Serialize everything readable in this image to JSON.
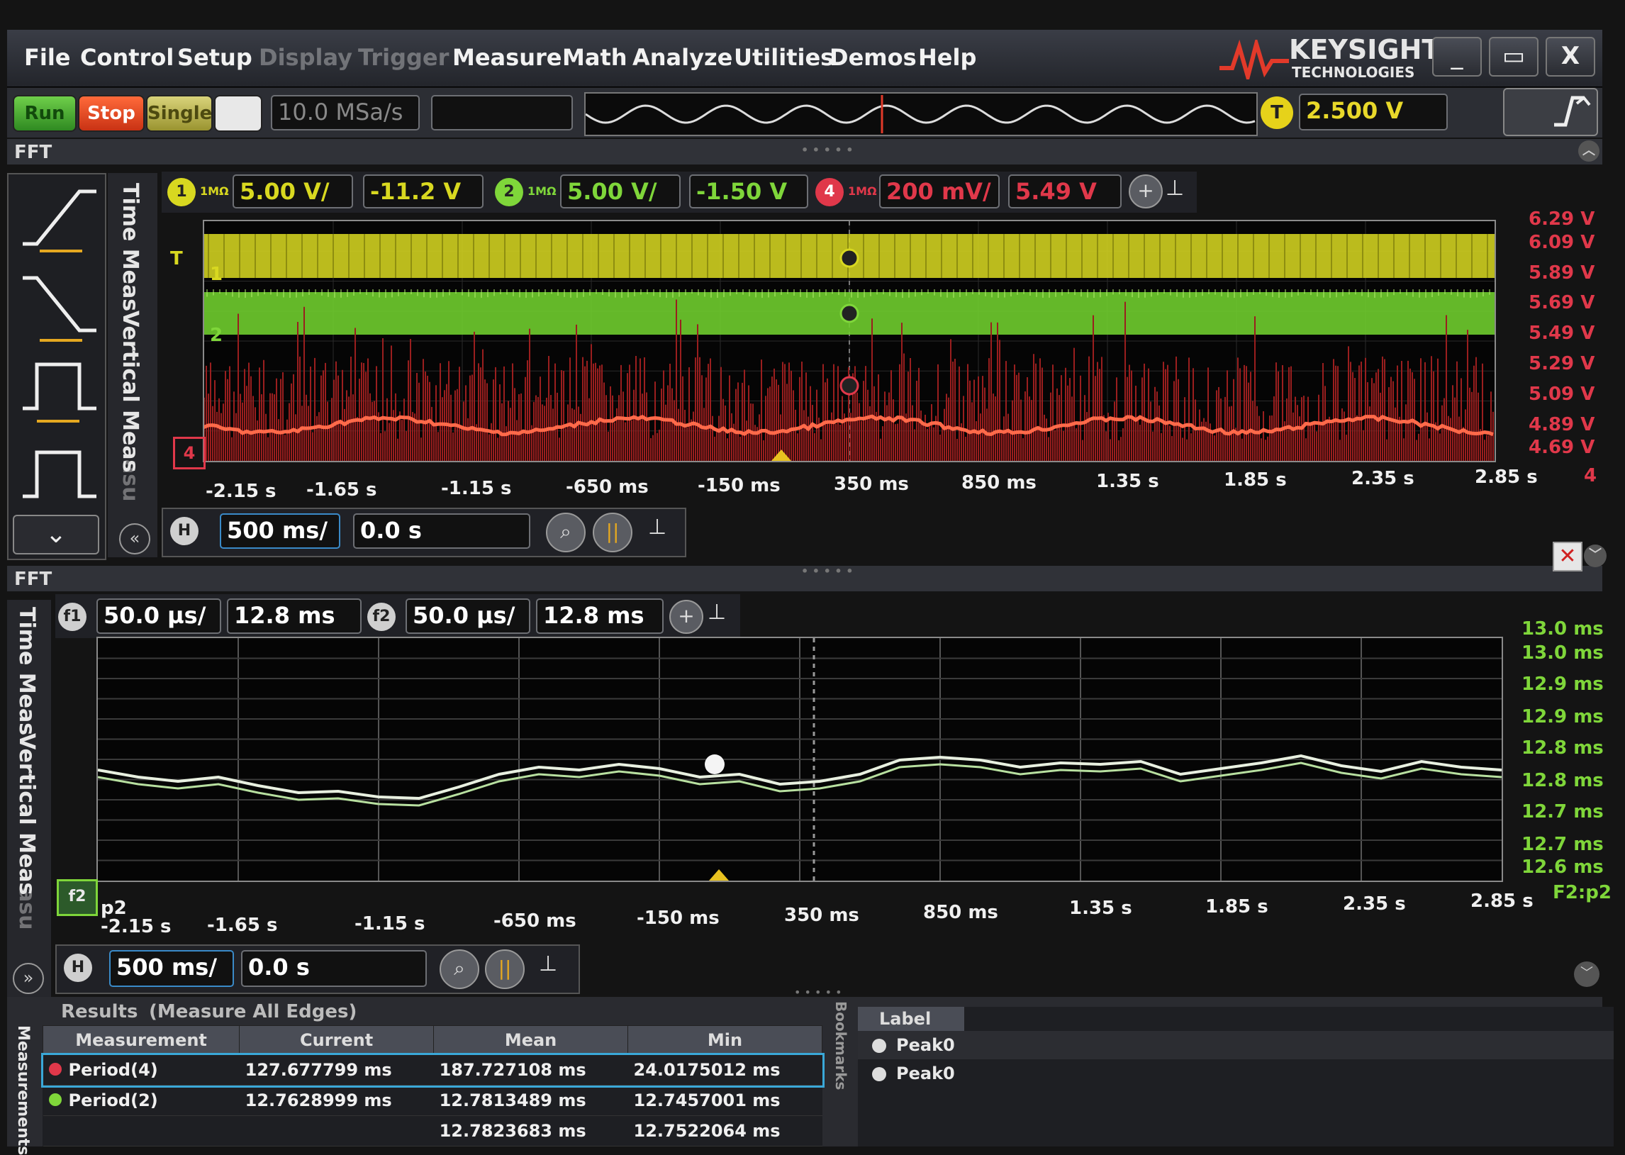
{
  "menu": [
    "File",
    "Control",
    "Setup",
    "Display",
    "Trigger",
    "Measure",
    "Math",
    "Analyze",
    "Utilities",
    "Demos",
    "Help"
  ],
  "brand": {
    "name": "KEYSIGHT",
    "sub": "TECHNOLOGIES"
  },
  "window_buttons": {
    "minimize": "_",
    "restore": "▭",
    "close": "X"
  },
  "toolbar": {
    "run": "Run",
    "stop": "Stop",
    "single": "Single",
    "sample_rate": "10.0 MSa/s",
    "trigger_chip": "T",
    "trigger_level": "2.500 V"
  },
  "fft_label_top": "FFT",
  "fft_label_bottom": "FFT",
  "channels": [
    {
      "num": "1",
      "imp": "1MΩ",
      "scale": "5.00 V/",
      "offset": "-11.2 V",
      "color": "#d8d820"
    },
    {
      "num": "2",
      "imp": "1MΩ",
      "scale": "5.00 V/",
      "offset": "-1.50 V",
      "color": "#7fd63a"
    },
    {
      "num": "4",
      "imp": "1MΩ",
      "scale": "200 mV/",
      "offset": "5.49 V",
      "color": "#e0384a"
    }
  ],
  "side_tabs_top": [
    "Time Meas",
    "Vertical Meas",
    "asu"
  ],
  "side_tabs_bottom": [
    "Time Meas",
    "Vertical Meas",
    "asu"
  ],
  "top_plot": {
    "right_labels": [
      "6.29 V",
      "6.09 V",
      "5.89 V",
      "5.69 V",
      "5.49 V",
      "5.29 V",
      "5.09 V",
      "4.89 V",
      "4.69 V",
      "4"
    ],
    "x_labels": [
      "-2.15 s",
      "-1.65 s",
      "-1.15 s",
      "-650 ms",
      "-150 ms",
      "350 ms",
      "850 ms",
      "1.35 s",
      "1.85 s",
      "2.35 s",
      "2.85 s"
    ],
    "markers": {
      "t": "T",
      "ch1": "1",
      "ch2": "2",
      "ch4": "4"
    }
  },
  "top_timebase": {
    "scale": "500 ms/",
    "delay": "0.0 s"
  },
  "function_bar": [
    {
      "chip": "f1",
      "scale": "50.0 µs/",
      "offset": "12.8 ms"
    },
    {
      "chip": "f2",
      "scale": "50.0 µs/",
      "offset": "12.8 ms"
    }
  ],
  "bottom_plot": {
    "right_labels": [
      "13.0 ms",
      "13.0 ms",
      "12.9 ms",
      "12.9 ms",
      "12.8 ms",
      "12.8 ms",
      "12.7 ms",
      "12.7 ms",
      "12.6 ms"
    ],
    "x_labels": [
      "-2.15 s",
      "-1.65 s",
      "-1.15 s",
      "-650 ms",
      "-150 ms",
      "350 ms",
      "850 ms",
      "1.35 s",
      "1.85 s",
      "2.35 s",
      "2.85 s"
    ],
    "source": "F2:p2",
    "marker": "p2"
  },
  "bottom_timebase": {
    "scale": "500 ms/",
    "delay": "0.0 s"
  },
  "results": {
    "title": "Results",
    "subtitle": "(Measure All Edges)",
    "side_tab": "Measurements",
    "columns": [
      "Measurement",
      "Current",
      "Mean",
      "Min"
    ],
    "rows": [
      {
        "name": "Period(4)",
        "current": "127.677799 ms",
        "mean": "187.727108 ms",
        "min": "24.0175012 ms",
        "color": "#e0384a"
      },
      {
        "name": "Period(2)",
        "current": "12.7628999 ms",
        "mean": "12.7813489 ms",
        "min": "12.7457001 ms",
        "color": "#7fd63a"
      },
      {
        "name": "",
        "current": "",
        "mean": "12.7823683 ms",
        "min": "12.7522064 ms",
        "color": "#d8d820"
      }
    ]
  },
  "bookmarks": {
    "side_tab": "Bookmarks",
    "column": "Label",
    "rows": [
      "Peak0",
      "Peak0"
    ]
  }
}
